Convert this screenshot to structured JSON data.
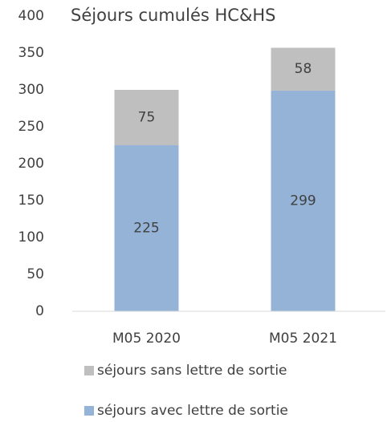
{
  "chart_data": {
    "type": "stacked_bar",
    "title": "Séjours cumulés HC&HS",
    "categories": [
      "M05 2020",
      "M05 2021"
    ],
    "series": [
      {
        "name": "séjours avec lettre de sortie",
        "color": "#95b3d7",
        "values": [
          225,
          299
        ]
      },
      {
        "name": "séjours sans lettre de sortie",
        "color": "#bfbfbf",
        "values": [
          75,
          58
        ]
      }
    ],
    "ylim": [
      0,
      400
    ],
    "yticks": [
      0,
      50,
      100,
      150,
      200,
      250,
      300,
      350,
      400
    ],
    "grid": false,
    "legend": "bottom"
  }
}
